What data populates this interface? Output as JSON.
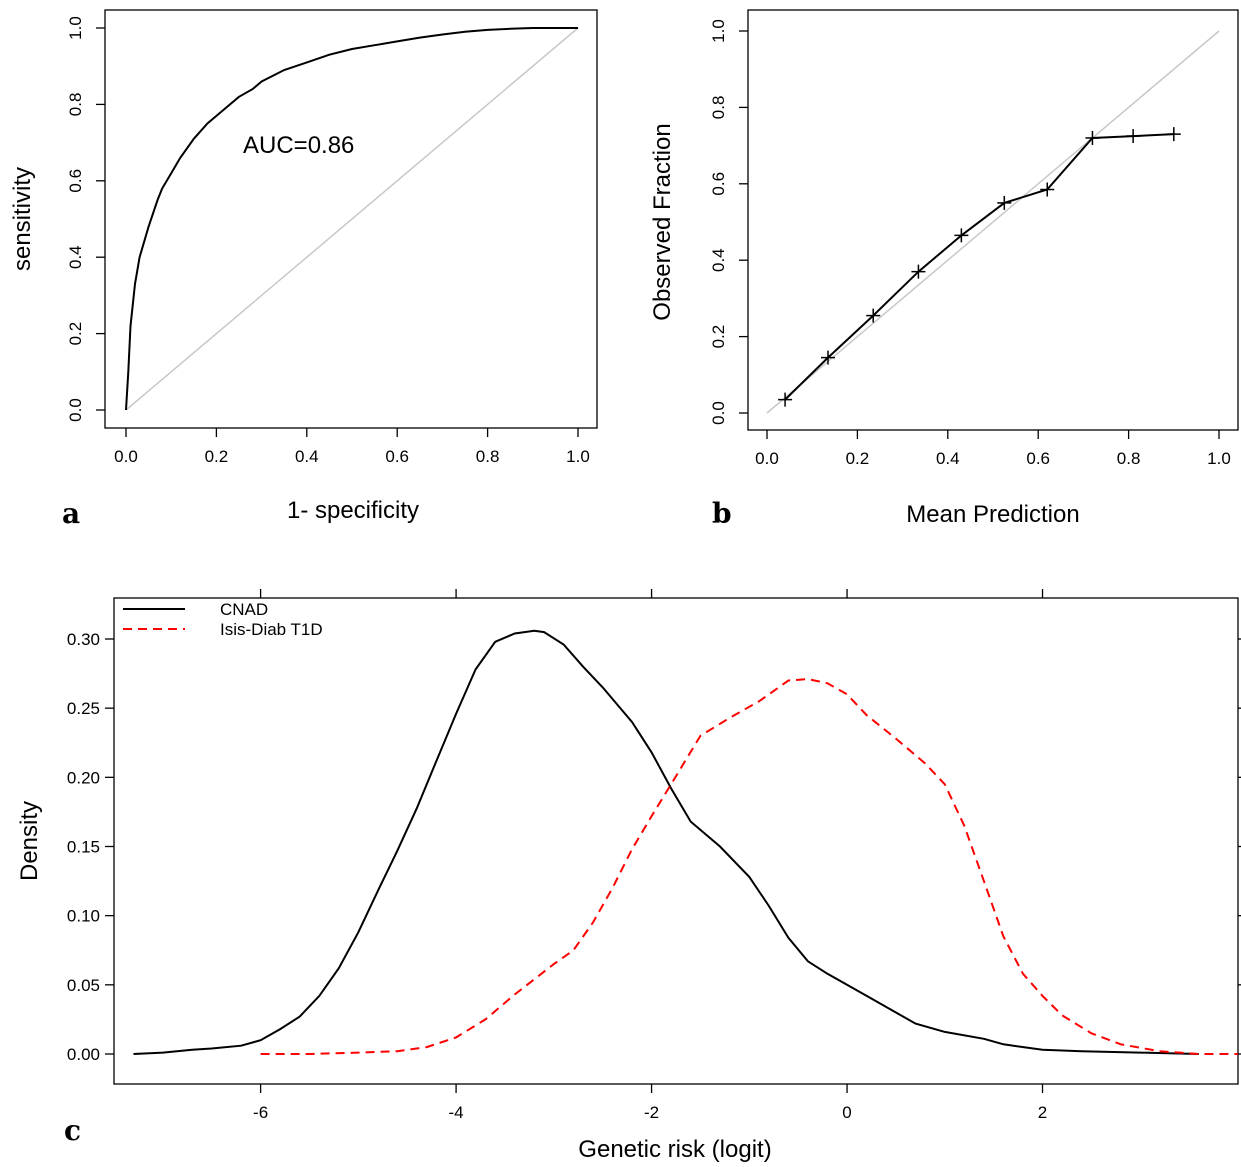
{
  "chart_data": [
    {
      "panel": "a",
      "type": "line",
      "xlabel": "1- specificity",
      "ylabel": "sensitivity",
      "xlim": [
        0,
        1
      ],
      "ylim": [
        0,
        1
      ],
      "xticks": [
        "0.0",
        "0.2",
        "0.4",
        "0.6",
        "0.8",
        "1.0"
      ],
      "yticks": [
        "0.0",
        "0.2",
        "0.4",
        "0.6",
        "0.8",
        "1.0"
      ],
      "annotation": "AUC=0.86",
      "reference_line": {
        "x": [
          0,
          1
        ],
        "y": [
          0,
          1
        ],
        "color": "#c8c8c8"
      },
      "series": [
        {
          "color": "#000000",
          "x": [
            0.0,
            0.005,
            0.01,
            0.02,
            0.03,
            0.05,
            0.07,
            0.08,
            0.1,
            0.12,
            0.15,
            0.18,
            0.2,
            0.23,
            0.25,
            0.28,
            0.3,
            0.35,
            0.4,
            0.45,
            0.5,
            0.55,
            0.6,
            0.65,
            0.7,
            0.75,
            0.8,
            0.85,
            0.9,
            0.95,
            1.0
          ],
          "y": [
            0.0,
            0.1,
            0.22,
            0.33,
            0.4,
            0.48,
            0.55,
            0.58,
            0.62,
            0.66,
            0.71,
            0.75,
            0.77,
            0.8,
            0.82,
            0.84,
            0.86,
            0.89,
            0.91,
            0.93,
            0.945,
            0.955,
            0.965,
            0.975,
            0.983,
            0.99,
            0.995,
            0.998,
            1.0,
            1.0,
            1.0
          ]
        }
      ]
    },
    {
      "panel": "b",
      "type": "line",
      "xlabel": "Mean Prediction",
      "ylabel": "Observed Fraction",
      "xlim": [
        0,
        1
      ],
      "ylim": [
        0,
        1
      ],
      "xticks": [
        "0.0",
        "0.2",
        "0.4",
        "0.6",
        "0.8",
        "1.0"
      ],
      "yticks": [
        "0.0",
        "0.2",
        "0.4",
        "0.6",
        "0.8",
        "1.0"
      ],
      "reference_line": {
        "x": [
          0,
          1
        ],
        "y": [
          0,
          1
        ],
        "color": "#c8c8c8"
      },
      "series": [
        {
          "color": "#000000",
          "marker": "+",
          "x": [
            0.04,
            0.135,
            0.235,
            0.335,
            0.43,
            0.525,
            0.62,
            0.72,
            0.81,
            0.9
          ],
          "y": [
            0.035,
            0.145,
            0.255,
            0.37,
            0.465,
            0.55,
            0.585,
            0.72,
            0.725,
            0.73
          ]
        }
      ]
    },
    {
      "panel": "c",
      "type": "line",
      "xlabel": "Genetic risk (logit)",
      "ylabel": "Density",
      "xlim": [
        -7.5,
        4.0
      ],
      "ylim": [
        -0.01,
        0.325
      ],
      "xticks": [
        "-6",
        "-4",
        "-2",
        "0",
        "2"
      ],
      "yticks": [
        "0.00",
        "0.05",
        "0.10",
        "0.15",
        "0.20",
        "0.25",
        "0.30"
      ],
      "legend_position": "top-left",
      "series": [
        {
          "name": "CNAD",
          "color": "#000000",
          "dash": "solid",
          "x": [
            -7.3,
            -7.0,
            -6.7,
            -6.5,
            -6.2,
            -6.0,
            -5.8,
            -5.6,
            -5.4,
            -5.2,
            -5.0,
            -4.8,
            -4.6,
            -4.4,
            -4.2,
            -4.0,
            -3.8,
            -3.6,
            -3.4,
            -3.2,
            -3.1,
            -2.9,
            -2.7,
            -2.5,
            -2.2,
            -2.0,
            -1.8,
            -1.6,
            -1.3,
            -1.0,
            -0.8,
            -0.6,
            -0.4,
            -0.2,
            0.0,
            0.3,
            0.7,
            1.0,
            1.4,
            1.6,
            2.0,
            2.4,
            3.0,
            3.6
          ],
          "y": [
            0.0,
            0.001,
            0.003,
            0.004,
            0.006,
            0.01,
            0.018,
            0.027,
            0.042,
            0.062,
            0.088,
            0.118,
            0.147,
            0.178,
            0.212,
            0.246,
            0.278,
            0.298,
            0.304,
            0.306,
            0.305,
            0.296,
            0.28,
            0.265,
            0.24,
            0.218,
            0.192,
            0.168,
            0.15,
            0.128,
            0.107,
            0.084,
            0.067,
            0.058,
            0.05,
            0.038,
            0.022,
            0.016,
            0.011,
            0.007,
            0.003,
            0.002,
            0.001,
            0.0
          ]
        },
        {
          "name": "Isis-Diab T1D",
          "color": "#ff0000",
          "dash": "dashed",
          "x": [
            -6.0,
            -5.5,
            -5.0,
            -4.6,
            -4.3,
            -4.0,
            -3.7,
            -3.4,
            -3.0,
            -2.8,
            -2.6,
            -2.4,
            -2.2,
            -2.0,
            -1.8,
            -1.5,
            -1.2,
            -0.9,
            -0.6,
            -0.4,
            -0.2,
            0.0,
            0.2,
            0.5,
            0.8,
            1.0,
            1.2,
            1.4,
            1.6,
            1.8,
            2.0,
            2.2,
            2.5,
            2.8,
            3.2,
            3.6,
            4.0
          ],
          "y": [
            0.0,
            0.0,
            0.001,
            0.002,
            0.005,
            0.012,
            0.025,
            0.043,
            0.065,
            0.075,
            0.095,
            0.12,
            0.148,
            0.172,
            0.195,
            0.23,
            0.243,
            0.255,
            0.27,
            0.271,
            0.268,
            0.26,
            0.245,
            0.228,
            0.21,
            0.195,
            0.165,
            0.125,
            0.085,
            0.058,
            0.042,
            0.028,
            0.015,
            0.007,
            0.002,
            0.0,
            0.0
          ]
        }
      ]
    }
  ]
}
